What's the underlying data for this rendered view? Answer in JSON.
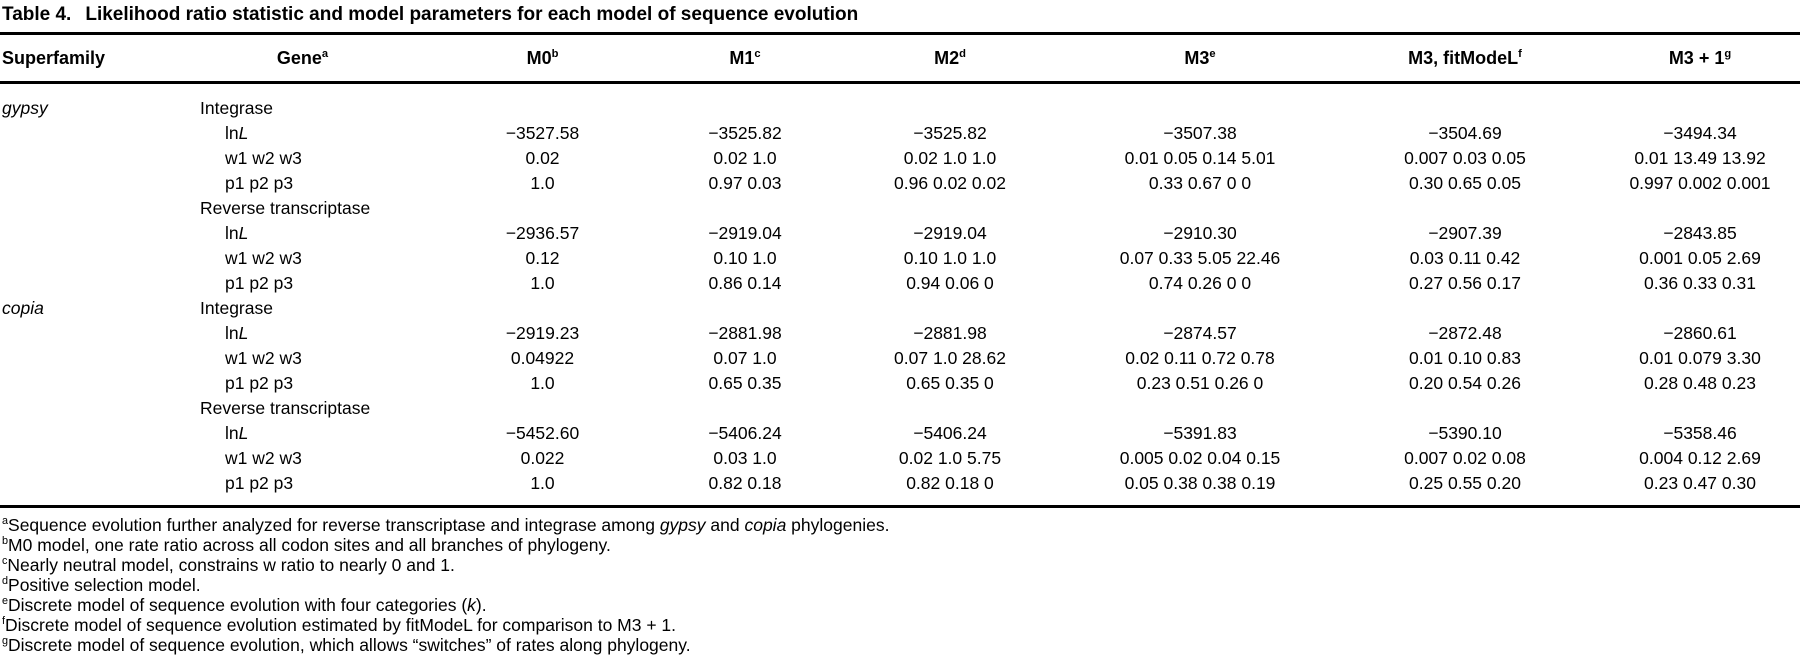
{
  "table": {
    "label": "Table 4.",
    "title": "Likelihood ratio statistic and model parameters for each model of sequence evolution",
    "columns": [
      {
        "label": "Superfamily",
        "sup": ""
      },
      {
        "label": "Gene",
        "sup": "a"
      },
      {
        "label": "M0",
        "sup": "b"
      },
      {
        "label": "M1",
        "sup": "c"
      },
      {
        "label": "M2",
        "sup": "d"
      },
      {
        "label": "M3",
        "sup": "e"
      },
      {
        "label": "M3, fitModeL",
        "sup": "f"
      },
      {
        "label": "M3 + 1",
        "sup": "g"
      }
    ],
    "sections": [
      {
        "superfamily": "gypsy",
        "genes": [
          {
            "name": "Integrase",
            "rows": [
              {
                "param_parts": [
                  {
                    "text": "ln"
                  },
                  {
                    "text": "L",
                    "italic": true
                  }
                ],
                "values": [
                  "−3527.58",
                  "−3525.82",
                  "−3525.82",
                  "−3507.38",
                  "−3504.69",
                  "−3494.34"
                ]
              },
              {
                "param_parts": [
                  {
                    "text": "w1 w2 w3"
                  }
                ],
                "values": [
                  "0.02",
                  "0.02 1.0",
                  "0.02 1.0 1.0",
                  "0.01 0.05 0.14 5.01",
                  "0.007 0.03 0.05",
                  "0.01 13.49 13.92"
                ]
              },
              {
                "param_parts": [
                  {
                    "text": "p1 p2 p3"
                  }
                ],
                "values": [
                  "1.0",
                  "0.97 0.03",
                  "0.96 0.02 0.02",
                  "0.33 0.67 0 0",
                  "0.30 0.65 0.05",
                  "0.997 0.002 0.001"
                ]
              }
            ]
          },
          {
            "name": "Reverse transcriptase",
            "rows": [
              {
                "param_parts": [
                  {
                    "text": "ln"
                  },
                  {
                    "text": "L",
                    "italic": true
                  }
                ],
                "values": [
                  "−2936.57",
                  "−2919.04",
                  "−2919.04",
                  "−2910.30",
                  "−2907.39",
                  "−2843.85"
                ]
              },
              {
                "param_parts": [
                  {
                    "text": "w1 w2 w3"
                  }
                ],
                "values": [
                  "0.12",
                  "0.10 1.0",
                  "0.10 1.0 1.0",
                  "0.07 0.33 5.05 22.46",
                  "0.03 0.11 0.42",
                  "0.001 0.05 2.69"
                ]
              },
              {
                "param_parts": [
                  {
                    "text": "p1 p2 p3"
                  }
                ],
                "values": [
                  "1.0",
                  "0.86 0.14",
                  "0.94 0.06 0",
                  "0.74 0.26 0 0",
                  "0.27 0.56 0.17",
                  "0.36 0.33 0.31"
                ]
              }
            ]
          }
        ]
      },
      {
        "superfamily": "copia",
        "genes": [
          {
            "name": "Integrase",
            "rows": [
              {
                "param_parts": [
                  {
                    "text": "ln"
                  },
                  {
                    "text": "L",
                    "italic": true
                  }
                ],
                "values": [
                  "−2919.23",
                  "−2881.98",
                  "−2881.98",
                  "−2874.57",
                  "−2872.48",
                  "−2860.61"
                ]
              },
              {
                "param_parts": [
                  {
                    "text": "w1 w2 w3"
                  }
                ],
                "values": [
                  "0.04922",
                  "0.07 1.0",
                  "0.07 1.0 28.62",
                  "0.02 0.11 0.72 0.78",
                  "0.01 0.10 0.83",
                  "0.01 0.079 3.30"
                ]
              },
              {
                "param_parts": [
                  {
                    "text": "p1 p2 p3"
                  }
                ],
                "values": [
                  "1.0",
                  "0.65 0.35",
                  "0.65 0.35 0",
                  "0.23 0.51 0.26 0",
                  "0.20 0.54 0.26",
                  "0.28 0.48 0.23"
                ]
              }
            ]
          },
          {
            "name": "Reverse transcriptase",
            "rows": [
              {
                "param_parts": [
                  {
                    "text": "ln"
                  },
                  {
                    "text": "L",
                    "italic": true
                  }
                ],
                "values": [
                  "−5452.60",
                  "−5406.24",
                  "−5406.24",
                  "−5391.83",
                  "−5390.10",
                  "−5358.46"
                ]
              },
              {
                "param_parts": [
                  {
                    "text": "w1 w2 w3"
                  }
                ],
                "values": [
                  "0.022",
                  "0.03 1.0",
                  "0.02 1.0 5.75",
                  "0.005 0.02 0.04 0.15",
                  "0.007 0.02 0.08",
                  "0.004 0.12 2.69"
                ]
              },
              {
                "param_parts": [
                  {
                    "text": "p1 p2 p3"
                  }
                ],
                "values": [
                  "1.0",
                  "0.82 0.18",
                  "0.82 0.18 0",
                  "0.05 0.38 0.38 0.19",
                  "0.25 0.55 0.20",
                  "0.23 0.47 0.30"
                ]
              }
            ]
          }
        ]
      }
    ]
  },
  "footnotes": [
    {
      "sup": "a",
      "parts": [
        {
          "text": "Sequence evolution further analyzed for reverse transcriptase and integrase among "
        },
        {
          "text": "gypsy",
          "italic": true
        },
        {
          "text": " and "
        },
        {
          "text": "copia",
          "italic": true
        },
        {
          "text": " phylogenies."
        }
      ]
    },
    {
      "sup": "b",
      "parts": [
        {
          "text": "M0 model, one rate ratio across all codon sites and all branches of phylogeny."
        }
      ]
    },
    {
      "sup": "c",
      "parts": [
        {
          "text": "Nearly neutral model, constrains w ratio to nearly 0 and 1."
        }
      ]
    },
    {
      "sup": "d",
      "parts": [
        {
          "text": "Positive selection model."
        }
      ]
    },
    {
      "sup": "e",
      "parts": [
        {
          "text": "Discrete model of sequence evolution with four categories ("
        },
        {
          "text": "k",
          "italic": true
        },
        {
          "text": ")."
        }
      ]
    },
    {
      "sup": "f",
      "parts": [
        {
          "text": "Discrete model of sequence evolution estimated by fitModeL for comparison to M3 + 1."
        }
      ]
    },
    {
      "sup": "g",
      "parts": [
        {
          "text": "Discrete model of sequence evolution, which allows “switches” of rates along phylogeny."
        }
      ]
    }
  ]
}
